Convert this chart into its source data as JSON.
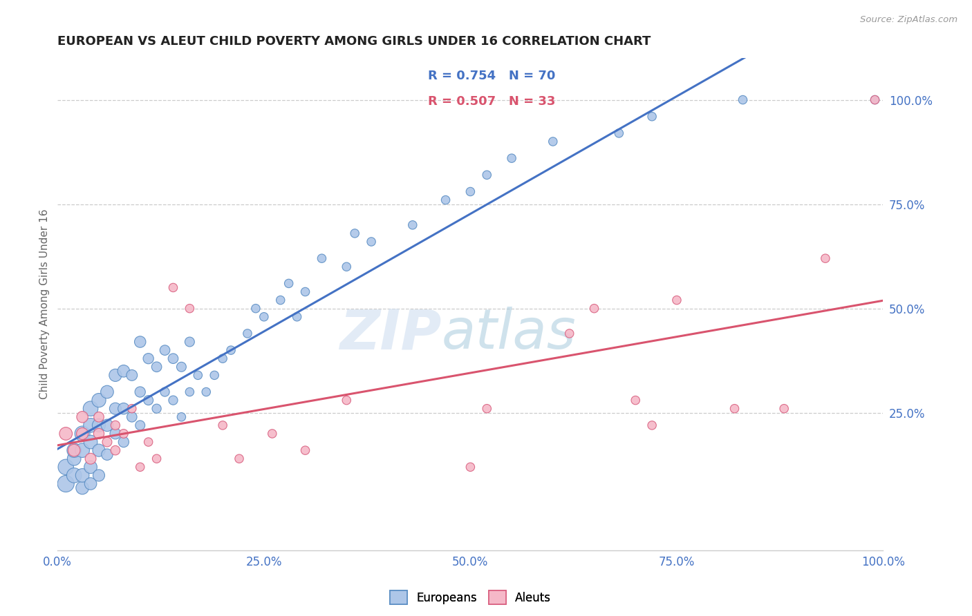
{
  "title": "EUROPEAN VS ALEUT CHILD POVERTY AMONG GIRLS UNDER 16 CORRELATION CHART",
  "source": "Source: ZipAtlas.com",
  "ylabel": "Child Poverty Among Girls Under 16",
  "xlim": [
    0.0,
    1.0
  ],
  "ylim": [
    -0.08,
    1.1
  ],
  "xtick_values": [
    0.0,
    0.25,
    0.5,
    0.75,
    1.0
  ],
  "xtick_labels": [
    "0.0%",
    "25.0%",
    "50.0%",
    "75.0%",
    "100.0%"
  ],
  "ytick_values": [
    0.25,
    0.5,
    0.75,
    1.0
  ],
  "watermark_zip": "ZIP",
  "watermark_atlas": "atlas",
  "european_color": "#adc6e8",
  "aleut_color": "#f5b8c8",
  "european_edge_color": "#5b8ec4",
  "aleut_edge_color": "#d96080",
  "european_line_color": "#4472c4",
  "aleut_line_color": "#d9546e",
  "european_R": 0.754,
  "european_N": 70,
  "aleut_R": 0.507,
  "aleut_N": 33,
  "legend_label_european": "Europeans",
  "legend_label_aleut": "Aleuts",
  "legend_text_color": "#4472c4",
  "legend_R_color_eu": "#4472c4",
  "legend_R_color_al": "#d9546e",
  "background_color": "#ffffff",
  "grid_color": "#cccccc",
  "title_color": "#222222",
  "axis_tick_color": "#4472c4",
  "european_x": [
    0.01,
    0.01,
    0.02,
    0.02,
    0.02,
    0.03,
    0.03,
    0.03,
    0.03,
    0.04,
    0.04,
    0.04,
    0.04,
    0.04,
    0.05,
    0.05,
    0.05,
    0.05,
    0.06,
    0.06,
    0.06,
    0.07,
    0.07,
    0.07,
    0.08,
    0.08,
    0.08,
    0.09,
    0.09,
    0.1,
    0.1,
    0.1,
    0.11,
    0.11,
    0.12,
    0.12,
    0.13,
    0.13,
    0.14,
    0.14,
    0.15,
    0.15,
    0.16,
    0.16,
    0.17,
    0.18,
    0.19,
    0.2,
    0.21,
    0.23,
    0.24,
    0.25,
    0.27,
    0.28,
    0.29,
    0.3,
    0.32,
    0.35,
    0.36,
    0.38,
    0.43,
    0.47,
    0.5,
    0.52,
    0.55,
    0.6,
    0.68,
    0.72,
    0.83,
    0.99
  ],
  "european_y": [
    0.08,
    0.12,
    0.1,
    0.14,
    0.16,
    0.07,
    0.1,
    0.16,
    0.2,
    0.08,
    0.12,
    0.18,
    0.22,
    0.26,
    0.1,
    0.16,
    0.22,
    0.28,
    0.15,
    0.22,
    0.3,
    0.2,
    0.26,
    0.34,
    0.18,
    0.26,
    0.35,
    0.24,
    0.34,
    0.22,
    0.3,
    0.42,
    0.28,
    0.38,
    0.26,
    0.36,
    0.3,
    0.4,
    0.28,
    0.38,
    0.24,
    0.36,
    0.3,
    0.42,
    0.34,
    0.3,
    0.34,
    0.38,
    0.4,
    0.44,
    0.5,
    0.48,
    0.52,
    0.56,
    0.48,
    0.54,
    0.62,
    0.6,
    0.68,
    0.66,
    0.7,
    0.76,
    0.78,
    0.82,
    0.86,
    0.9,
    0.92,
    0.96,
    1.0,
    1.0
  ],
  "european_sizes": [
    300,
    260,
    240,
    200,
    220,
    180,
    200,
    220,
    250,
    160,
    180,
    200,
    220,
    240,
    150,
    170,
    190,
    210,
    140,
    160,
    180,
    130,
    150,
    170,
    120,
    140,
    160,
    110,
    130,
    100,
    120,
    140,
    100,
    120,
    90,
    110,
    90,
    110,
    90,
    110,
    80,
    100,
    80,
    100,
    80,
    80,
    80,
    80,
    80,
    80,
    80,
    80,
    80,
    80,
    80,
    80,
    80,
    80,
    80,
    80,
    80,
    80,
    80,
    80,
    80,
    80,
    80,
    80,
    80,
    80
  ],
  "aleut_x": [
    0.01,
    0.02,
    0.03,
    0.03,
    0.04,
    0.05,
    0.05,
    0.06,
    0.07,
    0.07,
    0.08,
    0.09,
    0.1,
    0.11,
    0.12,
    0.14,
    0.16,
    0.2,
    0.22,
    0.26,
    0.3,
    0.35,
    0.5,
    0.52,
    0.62,
    0.65,
    0.7,
    0.72,
    0.75,
    0.82,
    0.88,
    0.93,
    0.99
  ],
  "aleut_y": [
    0.2,
    0.16,
    0.2,
    0.24,
    0.14,
    0.2,
    0.24,
    0.18,
    0.16,
    0.22,
    0.2,
    0.26,
    0.12,
    0.18,
    0.14,
    0.55,
    0.5,
    0.22,
    0.14,
    0.2,
    0.16,
    0.28,
    0.12,
    0.26,
    0.44,
    0.5,
    0.28,
    0.22,
    0.52,
    0.26,
    0.26,
    0.62,
    1.0
  ],
  "aleut_sizes": [
    180,
    160,
    150,
    140,
    130,
    120,
    110,
    100,
    95,
    90,
    85,
    80,
    80,
    80,
    80,
    80,
    80,
    80,
    80,
    80,
    80,
    80,
    80,
    80,
    80,
    80,
    80,
    80,
    80,
    80,
    80,
    80,
    80
  ]
}
